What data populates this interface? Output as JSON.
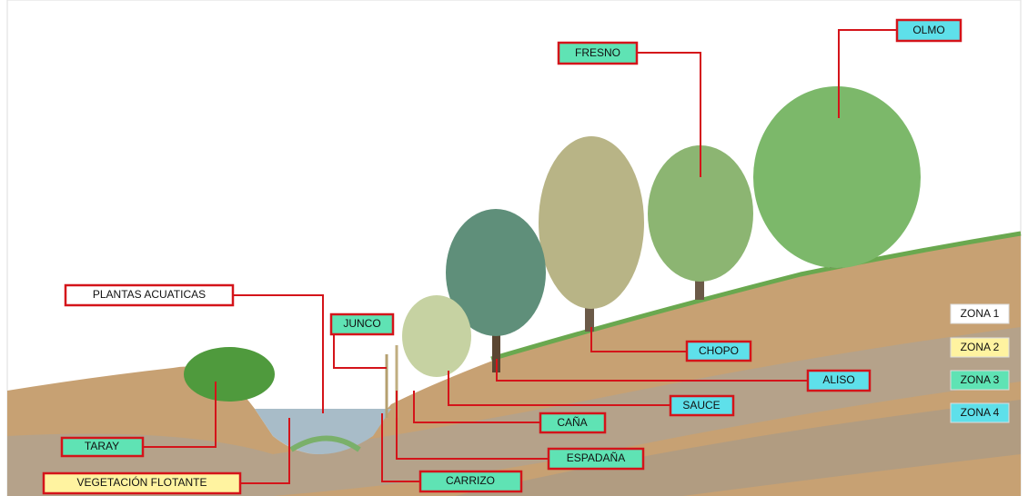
{
  "labels": {
    "plantas_acuaticas": "PLANTAS ACUATICAS",
    "junco": "JUNCO",
    "taray": "TARAY",
    "vegetacion_flotante": "VEGETACIÓN FLOTANTE",
    "carrizo": "CARRIZO",
    "espadana": "ESPADAÑA",
    "cana": "CAÑA",
    "sauce": "SAUCE",
    "aliso": "ALISO",
    "chopo": "CHOPO",
    "fresno": "FRESNO",
    "olmo": "OLMO"
  },
  "zones": [
    "ZONA 1",
    "ZONA 2",
    "ZONA 3",
    "ZONA 4"
  ]
}
